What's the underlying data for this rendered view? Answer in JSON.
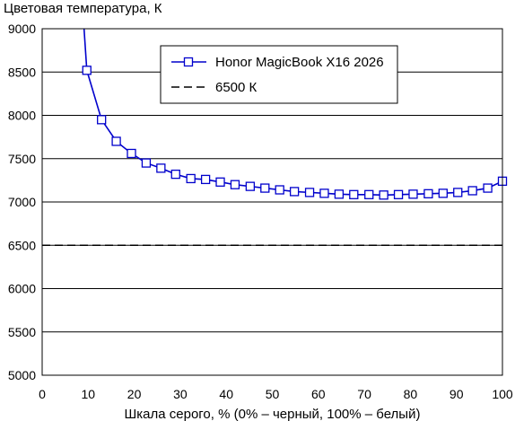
{
  "chart_data": {
    "type": "line",
    "title": "",
    "ylabel": "Цветовая температура, К",
    "xlabel": "Шкала серого, % (0% – черный, 100% – белый)",
    "xlim": [
      0,
      100
    ],
    "ylim": [
      5000,
      9000
    ],
    "xticks": [
      "0",
      "10",
      "20",
      "30",
      "40",
      "50",
      "60",
      "70",
      "80",
      "90",
      "100"
    ],
    "yticks": [
      "5000",
      "5500",
      "6000",
      "6500",
      "7000",
      "7500",
      "8000",
      "8500",
      "9000"
    ],
    "grid": "horizontal",
    "legend_position": "top-center",
    "series": [
      {
        "name": "Honor MagicBook X16 2026",
        "color": "#0000cc",
        "marker": "open-square",
        "line_start": [
          9,
          9080
        ],
        "x": [
          9.7,
          12.9,
          16.1,
          19.4,
          22.6,
          25.8,
          29.0,
          32.3,
          35.5,
          38.7,
          41.9,
          45.2,
          48.4,
          51.6,
          54.8,
          58.1,
          61.3,
          64.5,
          67.7,
          71.0,
          74.2,
          77.4,
          80.6,
          83.9,
          87.1,
          90.3,
          93.5,
          96.8,
          100
        ],
        "values": [
          8520,
          7950,
          7700,
          7560,
          7450,
          7390,
          7320,
          7270,
          7260,
          7230,
          7200,
          7180,
          7160,
          7140,
          7120,
          7110,
          7100,
          7090,
          7085,
          7085,
          7080,
          7085,
          7090,
          7095,
          7100,
          7110,
          7130,
          7160,
          7240
        ]
      },
      {
        "name": "6500 К",
        "color": "#000000",
        "style": "dashed",
        "x": [
          0,
          100
        ],
        "values": [
          6500,
          6500
        ]
      }
    ]
  }
}
